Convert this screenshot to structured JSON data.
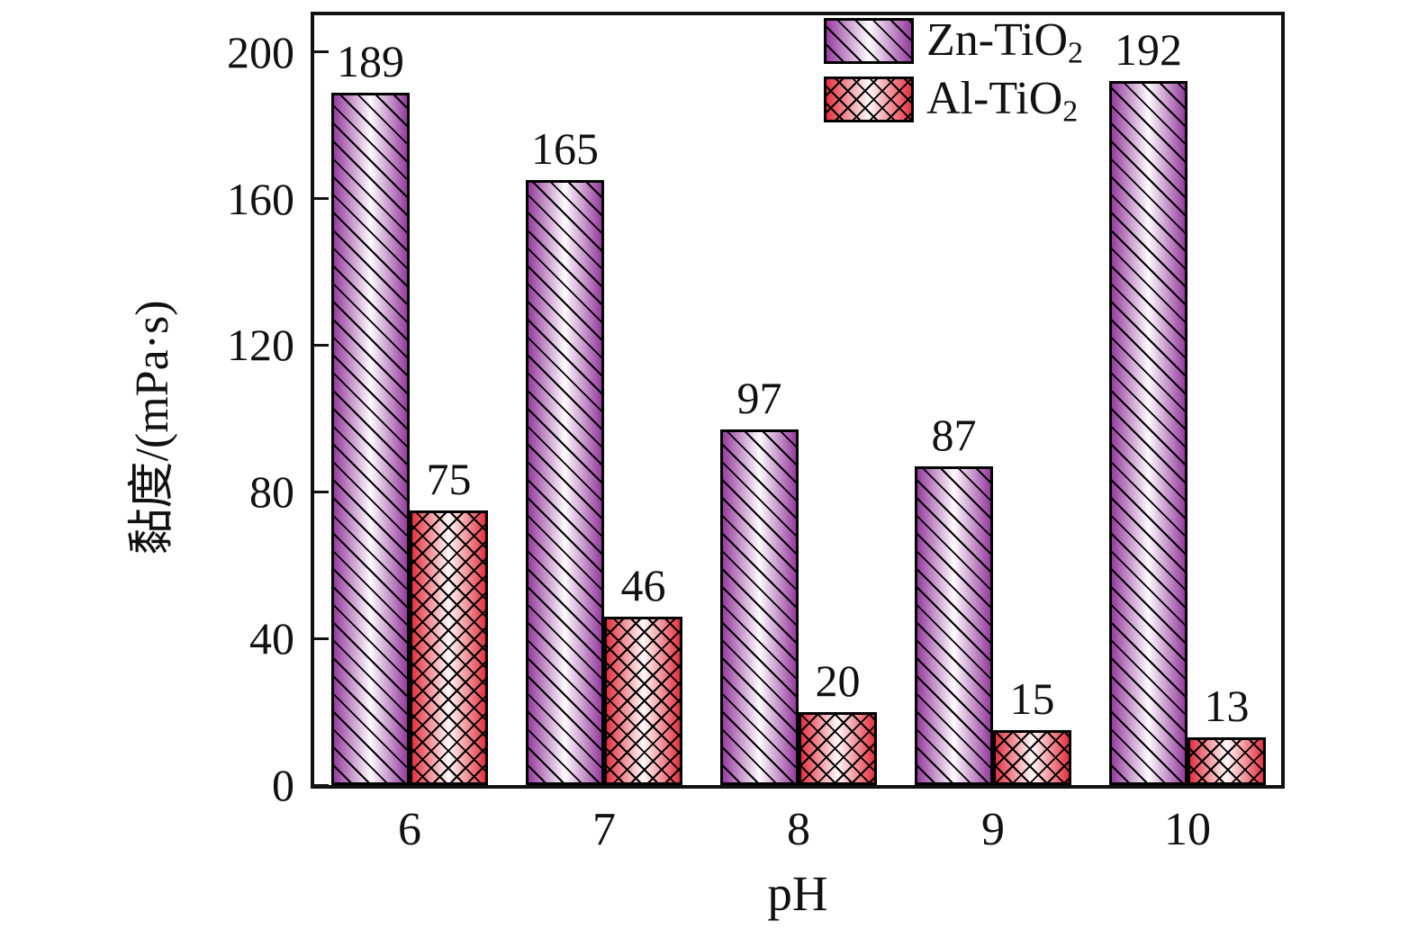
{
  "figure": {
    "background_color": "#ffffff",
    "frame_color": "#111111",
    "text_color": "#111111"
  },
  "legend": {
    "position": "top-right",
    "items": [
      {
        "label_base": "Zn-TiO",
        "label_sub": "2",
        "color": "#963c9e",
        "pattern": "diagonal-hatch"
      },
      {
        "label_base": "Al-TiO",
        "label_sub": "2",
        "color": "#e33140",
        "pattern": "crosshatch"
      }
    ]
  },
  "chart_data": {
    "type": "bar",
    "categories": [
      "6",
      "7",
      "8",
      "9",
      "10"
    ],
    "series": [
      {
        "name": "Zn-TiO2",
        "values": [
          189,
          165,
          97,
          87,
          192
        ],
        "color": "#963c9e",
        "hatch": "diagonal",
        "hatch_color": "#000000"
      },
      {
        "name": "Al-TiO2",
        "values": [
          75,
          46,
          20,
          15,
          13
        ],
        "color": "#e33140",
        "hatch": "crosshatch",
        "hatch_color": "#000000"
      }
    ],
    "title": "",
    "xlabel": "pH",
    "ylabel": "黏度/(mPa·s)",
    "ylim": [
      0,
      210
    ],
    "yticks": [
      0,
      40,
      80,
      120,
      160,
      200
    ],
    "bar_value_labels": true,
    "grid": false,
    "legend_position": "top-right"
  }
}
